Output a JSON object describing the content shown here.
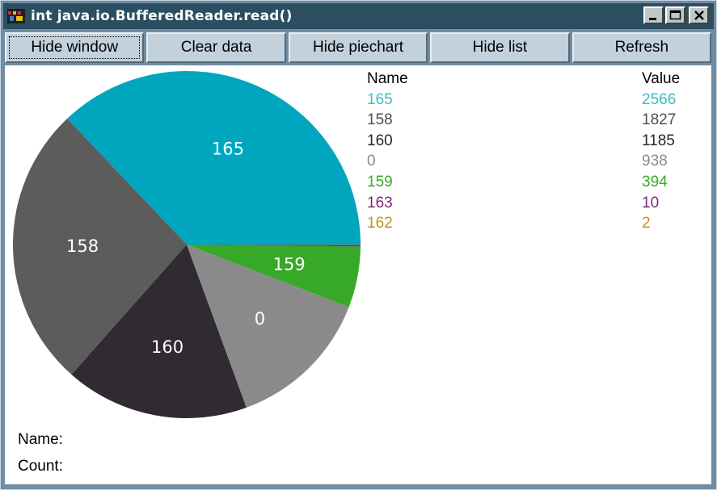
{
  "window": {
    "title": "int java.io.BufferedReader.read()",
    "controls": [
      "minimize-icon",
      "maximize-icon",
      "close-icon"
    ]
  },
  "toolbar": {
    "buttons": [
      "Hide window",
      "Clear data",
      "Hide piechart",
      "Hide list",
      "Refresh"
    ]
  },
  "list": {
    "header_name": "Name",
    "header_value": "Value",
    "rows": [
      {
        "name": "165",
        "value": "2566",
        "color": "#3cbcc4"
      },
      {
        "name": "158",
        "value": "1827",
        "color": "#505050"
      },
      {
        "name": "160",
        "value": "1185",
        "color": "#2a262c"
      },
      {
        "name": "0",
        "value": "938",
        "color": "#8c8c8c"
      },
      {
        "name": "159",
        "value": "394",
        "color": "#3cab28"
      },
      {
        "name": "163",
        "value": "10",
        "color": "#7a2a7a"
      },
      {
        "name": "162",
        "value": "2",
        "color": "#c0901a"
      }
    ]
  },
  "pie_colors": {
    "165": "#00a5be",
    "158": "#5c5c5c",
    "160": "#302b32",
    "0": "#8a8a8a",
    "159": "#38a828",
    "163": "#6a2a6a",
    "162": "#b88a10"
  },
  "footer": {
    "name_label": "Name:",
    "count_label": "Count:"
  }
}
